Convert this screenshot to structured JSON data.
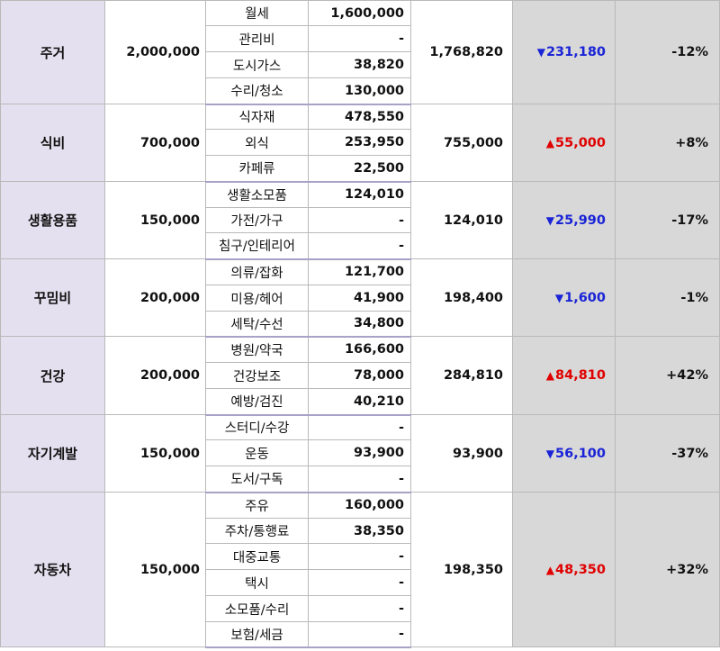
{
  "colors": {
    "category_bg": "#e5e0ef",
    "summary_bg": "#d8d8d8",
    "group_divider": "#a9a2c7",
    "increase": "#e00000",
    "decrease": "#1a24d6"
  },
  "icons": {
    "increase": "triangle-up-icon",
    "decrease": "triangle-down-icon"
  },
  "groups": [
    {
      "category": "주거",
      "budget": "2,000,000",
      "total": "1,768,820",
      "diff_dir": "down",
      "diff_symbol": "▼",
      "diff": "231,180",
      "pct": "-12%",
      "items": [
        {
          "name": "월세",
          "amount": "1,600,000"
        },
        {
          "name": "관리비",
          "amount": "-"
        },
        {
          "name": "도시가스",
          "amount": "38,820"
        },
        {
          "name": "수리/청소",
          "amount": "130,000"
        }
      ]
    },
    {
      "category": "식비",
      "budget": "700,000",
      "total": "755,000",
      "diff_dir": "up",
      "diff_symbol": "▲",
      "diff": "55,000",
      "pct": "+8%",
      "items": [
        {
          "name": "식자재",
          "amount": "478,550"
        },
        {
          "name": "외식",
          "amount": "253,950"
        },
        {
          "name": "카페류",
          "amount": "22,500"
        }
      ]
    },
    {
      "category": "생활용품",
      "budget": "150,000",
      "total": "124,010",
      "diff_dir": "down",
      "diff_symbol": "▼",
      "diff": "25,990",
      "pct": "-17%",
      "items": [
        {
          "name": "생활소모품",
          "amount": "124,010"
        },
        {
          "name": "가전/가구",
          "amount": "-"
        },
        {
          "name": "침구/인테리어",
          "amount": "-"
        }
      ]
    },
    {
      "category": "꾸밈비",
      "budget": "200,000",
      "total": "198,400",
      "diff_dir": "down",
      "diff_symbol": "▼",
      "diff": "1,600",
      "pct": "-1%",
      "items": [
        {
          "name": "의류/잡화",
          "amount": "121,700"
        },
        {
          "name": "미용/헤어",
          "amount": "41,900"
        },
        {
          "name": "세탁/수선",
          "amount": "34,800"
        }
      ]
    },
    {
      "category": "건강",
      "budget": "200,000",
      "total": "284,810",
      "diff_dir": "up",
      "diff_symbol": "▲",
      "diff": "84,810",
      "pct": "+42%",
      "items": [
        {
          "name": "병원/약국",
          "amount": "166,600"
        },
        {
          "name": "건강보조",
          "amount": "78,000"
        },
        {
          "name": "예방/검진",
          "amount": "40,210"
        }
      ]
    },
    {
      "category": "자기계발",
      "budget": "150,000",
      "total": "93,900",
      "diff_dir": "down",
      "diff_symbol": "▼",
      "diff": "56,100",
      "pct": "-37%",
      "items": [
        {
          "name": "스터디/수강",
          "amount": "-"
        },
        {
          "name": "운동",
          "amount": "93,900"
        },
        {
          "name": "도서/구독",
          "amount": "-"
        }
      ]
    },
    {
      "category": "자동차",
      "budget": "150,000",
      "total": "198,350",
      "diff_dir": "up",
      "diff_symbol": "▲",
      "diff": "48,350",
      "pct": "+32%",
      "items": [
        {
          "name": "주유",
          "amount": "160,000"
        },
        {
          "name": "주차/통행료",
          "amount": "38,350"
        },
        {
          "name": "대중교통",
          "amount": "-"
        },
        {
          "name": "택시",
          "amount": "-"
        },
        {
          "name": "소모품/수리",
          "amount": "-"
        },
        {
          "name": "보험/세금",
          "amount": "-"
        }
      ]
    }
  ]
}
